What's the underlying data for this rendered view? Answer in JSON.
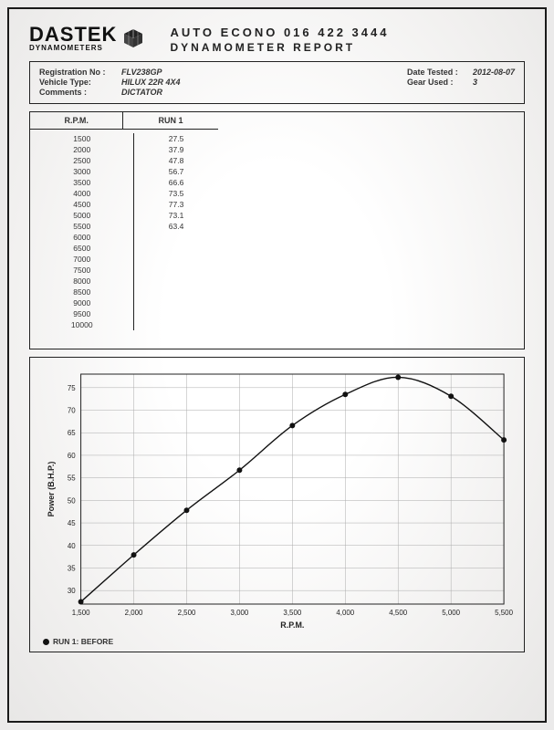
{
  "brand": {
    "name": "DASTEK",
    "sub": "DYNAMOMETERS"
  },
  "header": {
    "line1": "AUTO ECONO 016 422 3444",
    "line2": "DYNAMOMETER REPORT"
  },
  "info": {
    "reg_label": "Registration No :",
    "reg_val": "FLV238GP",
    "vehicle_label": "Vehicle Type:",
    "vehicle_val": "HILUX 22R 4X4",
    "comments_label": "Comments :",
    "comments_val": "DICTATOR",
    "date_label": "Date Tested :",
    "date_val": "2012-08-07",
    "gear_label": "Gear Used :",
    "gear_val": "3"
  },
  "table": {
    "col_rpm": "R.P.M.",
    "col_run1": "RUN 1",
    "rpms": [
      1500,
      2000,
      2500,
      3000,
      3500,
      4000,
      4500,
      5000,
      5500,
      6000,
      6500,
      7000,
      7500,
      8000,
      8500,
      9000,
      9500,
      10000
    ],
    "run1": [
      27.5,
      37.9,
      47.8,
      56.7,
      66.6,
      73.5,
      77.3,
      73.1,
      63.4,
      null,
      null,
      null,
      null,
      null,
      null,
      null,
      null,
      null
    ]
  },
  "chart": {
    "type": "line",
    "xlabel": "R.P.M.",
    "ylabel": "Power (B.H.P.)",
    "xlim": [
      1500,
      5500
    ],
    "ylim": [
      27,
      78
    ],
    "xticks": [
      1500,
      2000,
      2500,
      3000,
      3500,
      4000,
      4500,
      5000,
      5500
    ],
    "xtick_labels": [
      "1,500",
      "2,000",
      "2,500",
      "3,000",
      "3,500",
      "4,000",
      "4,500",
      "5,000",
      "5,500"
    ],
    "yticks": [
      30,
      35,
      40,
      45,
      50,
      55,
      60,
      65,
      70,
      75
    ],
    "grid_color": "#aaaaaa",
    "axis_color": "#222222",
    "line_color": "#111111",
    "marker_color": "#111111",
    "line_width": 1.4,
    "marker_radius": 3,
    "background": "#fafafa",
    "tick_fontsize": 8,
    "label_fontsize": 9,
    "series": [
      {
        "name": "RUN 1: BEFORE",
        "x": [
          1500,
          2000,
          2500,
          3000,
          3500,
          4000,
          4500,
          5000,
          5500
        ],
        "y": [
          27.5,
          37.9,
          47.8,
          56.7,
          66.6,
          73.5,
          77.3,
          73.1,
          63.4
        ]
      }
    ],
    "legend_label": "RUN 1: BEFORE"
  }
}
